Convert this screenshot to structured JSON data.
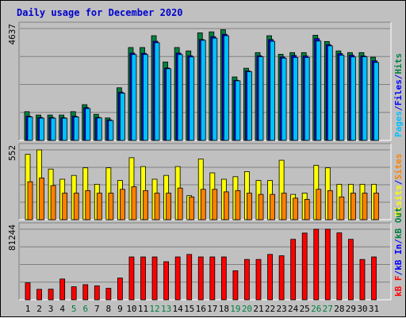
{
  "chart_data": {
    "title": "Daily usage for December 2020",
    "type": "bar",
    "days": [
      "1",
      "2",
      "3",
      "4",
      "5",
      "6",
      "7",
      "8",
      "9",
      "10",
      "11",
      "12",
      "13",
      "14",
      "15",
      "16",
      "17",
      "18",
      "19",
      "20",
      "21",
      "22",
      "23",
      "24",
      "25",
      "26",
      "27",
      "28",
      "29",
      "30",
      "31"
    ],
    "weekend_days": [
      5,
      6,
      12,
      13,
      19,
      20,
      26,
      27
    ],
    "panels": [
      {
        "id": "hits",
        "ymax_label": "4637",
        "ymax": 4637,
        "legend": [
          {
            "text": "Pages",
            "color": "#00c0ff"
          },
          {
            "text": "/",
            "color": "#0000ff"
          },
          {
            "text": "Files",
            "color": "#0000ff"
          },
          {
            "text": "/",
            "color": "#0000ff"
          },
          {
            "text": "Hits",
            "color": "#008040"
          }
        ],
        "series": [
          {
            "name": "Hits",
            "color": "#008040",
            "values": [
              1190,
              1050,
              1050,
              1050,
              1190,
              1480,
              1080,
              930,
              2180,
              3850,
              3850,
              4340,
              3250,
              3850,
              3710,
              4460,
              4500,
              4590,
              2630,
              2990,
              3640,
              4340,
              3570,
              3640,
              3640,
              4360,
              4100,
              3710,
              3640,
              3640,
              3450
            ]
          },
          {
            "name": "Files",
            "color": "#0000ff",
            "values": [
              1000,
              950,
              950,
              940,
              1000,
              1360,
              950,
              850,
              2000,
              3620,
              3610,
              4110,
              3000,
              3620,
              3510,
              4180,
              4300,
              4400,
              2490,
              2880,
              3510,
              4180,
              3460,
              3520,
              3500,
              4220,
              3970,
              3600,
              3530,
              3500,
              3300
            ]
          },
          {
            "name": "Pages",
            "color": "#00c0ff",
            "values": [
              970,
              920,
              920,
              920,
              970,
              1320,
              930,
              820,
              1960,
              3560,
              3560,
              4050,
              2970,
              3560,
              3460,
              4150,
              4240,
              4340,
              2470,
              2850,
              3470,
              4110,
              3410,
              3440,
              3440,
              4120,
              3920,
              3530,
              3460,
              3470,
              3230
            ]
          }
        ]
      },
      {
        "id": "visits",
        "ymax_label": "552",
        "ymax": 552,
        "legend": [
          {
            "text": "Visits",
            "color": "#ffff00"
          },
          {
            "text": "/",
            "color": "#0000ff"
          },
          {
            "text": "Sites",
            "color": "#ff8000"
          }
        ],
        "series": [
          {
            "name": "Visits",
            "color": "#ffff00",
            "values": [
              517,
              552,
              400,
              320,
              350,
              410,
              280,
              410,
              310,
              490,
              420,
              320,
              350,
              420,
              190,
              480,
              370,
              320,
              340,
              380,
              310,
              310,
              470,
              200,
              210,
              430,
              410,
              280,
              280,
              280,
              280
            ]
          },
          {
            "name": "Sites",
            "color": "#ff8000",
            "values": [
              300,
              330,
              270,
              210,
              210,
              230,
              210,
              210,
              240,
              260,
              230,
              210,
              210,
              250,
              180,
              240,
              240,
              220,
              230,
              210,
              200,
              200,
              210,
              170,
              160,
              240,
              230,
              180,
              210,
              210,
              210
            ]
          }
        ]
      },
      {
        "id": "kbytes",
        "ymax_label": "81244",
        "ymax": 81244,
        "legend": [
          {
            "text": "kB F",
            "color": "#ff0000"
          },
          {
            "text": "/",
            "color": "#0000ff"
          },
          {
            "text": "kB In",
            "color": "#0000ff"
          },
          {
            "text": "/",
            "color": "#0000ff"
          },
          {
            "text": "kB Out",
            "color": "#008040"
          }
        ],
        "series": [
          {
            "name": "kB F",
            "color": "#ff0000",
            "values": [
              19500,
              12000,
              12200,
              23900,
              15000,
              17400,
              16000,
              13200,
              25000,
              49300,
              49300,
              49300,
              43800,
              49300,
              52200,
              49300,
              49300,
              49300,
              33400,
              46400,
              46400,
              52200,
              50700,
              69600,
              76800,
              81244,
              81244,
              77000,
              69600,
              46400,
              49300
            ]
          }
        ]
      }
    ]
  }
}
